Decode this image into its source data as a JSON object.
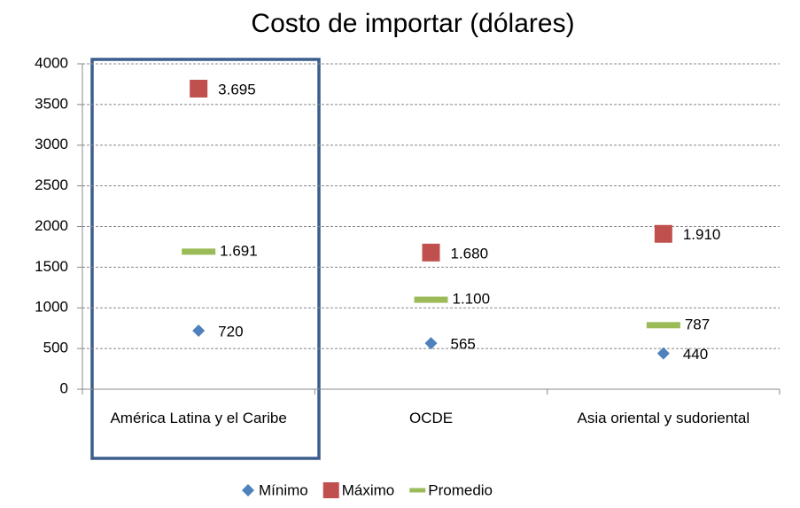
{
  "chart_data": {
    "type": "scatter",
    "title": "Costo de importar (dólares)",
    "categories": [
      "América Latina y el Caribe",
      "OCDE",
      "Asia oriental y sudoriental"
    ],
    "series": [
      {
        "name": "Mínimo",
        "color": "#4f81bd",
        "marker": "diamond",
        "values": [
          720,
          565,
          440
        ],
        "value_labels": [
          "720",
          "565",
          "440"
        ]
      },
      {
        "name": "Máximo",
        "color": "#c0504d",
        "marker": "square",
        "values": [
          3695,
          1680,
          1910
        ],
        "value_labels": [
          "3.695",
          "1.680",
          "1.910"
        ]
      },
      {
        "name": "Promedio",
        "color": "#9bbb59",
        "marker": "dash",
        "values": [
          1691,
          1100,
          787
        ],
        "value_labels": [
          "1.691",
          "1.100",
          "787"
        ]
      }
    ],
    "ylim": [
      0,
      4000
    ],
    "yticks": [
      0,
      500,
      1000,
      1500,
      2000,
      2500,
      3000,
      3500,
      4000
    ],
    "grid": true,
    "legend": "bottom"
  }
}
